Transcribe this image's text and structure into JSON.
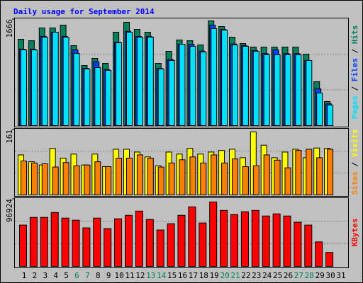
{
  "chart_data": [
    {
      "type": "bar",
      "title": "Daily usage for September 2014",
      "categories": [
        "1",
        "2",
        "3",
        "4",
        "5",
        "6",
        "7",
        "8",
        "9",
        "10",
        "11",
        "12",
        "13",
        "14",
        "15",
        "16",
        "17",
        "18",
        "19",
        "20",
        "21",
        "22",
        "23",
        "24",
        "25",
        "26",
        "27",
        "28",
        "29",
        "30",
        "31"
      ],
      "category_colors": [
        "#000000",
        "#000000",
        "#000000",
        "#000000",
        "#000000",
        "#00805c",
        "#00805c",
        "#000000",
        "#000000",
        "#000000",
        "#000000",
        "#000000",
        "#00805c",
        "#00805c",
        "#000000",
        "#000000",
        "#000000",
        "#000000",
        "#000000",
        "#00805c",
        "#00805c",
        "#000000",
        "#000000",
        "#000000",
        "#000000",
        "#000000",
        "#00805c",
        "#00805c",
        "#000000",
        "#000000",
        "#000000"
      ],
      "ylim": [
        0,
        1666
      ],
      "yticks": [
        1666
      ],
      "series": [
        {
          "name": "Hits",
          "color": "#00805c",
          "values": [
            1355,
            1333,
            1533,
            1533,
            1577,
            1255,
            944,
            1055,
            977,
            1466,
            1622,
            1510,
            1466,
            977,
            1166,
            1344,
            1333,
            1266,
            1644,
            1555,
            1388,
            1288,
            1233,
            1233,
            1233,
            1233,
            1233,
            1122,
            689,
            378,
            null
          ]
        },
        {
          "name": "Files",
          "color": "#0040ff",
          "values": [
            1200,
            1200,
            1400,
            1466,
            1400,
            1188,
            900,
            1000,
            880,
            1310,
            1480,
            1400,
            1400,
            900,
            1040,
            1277,
            1277,
            1170,
            1577,
            1510,
            1280,
            1255,
            1180,
            1130,
            1188,
            1130,
            1130,
            1022,
            577,
            340,
            null
          ]
        },
        {
          "name": "Pages",
          "color": "#00e0ff",
          "values": [
            1188,
            1188,
            1388,
            1466,
            1388,
            1133,
            888,
            911,
            866,
            1300,
            1466,
            1388,
            1388,
            888,
            1022,
            1277,
            1244,
            1155,
            1522,
            1500,
            1266,
            1244,
            1166,
            1111,
            1111,
            1111,
            1111,
            1022,
            511,
            322,
            null
          ]
        }
      ]
    },
    {
      "type": "bar",
      "ylim": [
        0,
        161
      ],
      "yticks": [
        161
      ],
      "series": [
        {
          "name": "Visits",
          "color": "#ffff00",
          "values": [
            99,
            82,
            74,
            115,
            91,
            101,
            74,
            101,
            70,
            113,
            113,
            106,
            94,
            72,
            106,
            101,
            115,
            101,
            106,
            110,
            113,
            92,
            156,
            123,
            92,
            106,
            113,
            92,
            116,
            115,
            null
          ]
        },
        {
          "name": "Sites",
          "color": "#ff8000",
          "values": [
            84,
            79,
            77,
            69,
            80,
            72,
            74,
            82,
            70,
            91,
            91,
            99,
            91,
            69,
            79,
            87,
            94,
            79,
            99,
            79,
            89,
            70,
            72,
            99,
            86,
            67,
            110,
            113,
            92,
            113,
            null
          ]
        }
      ]
    },
    {
      "type": "bar",
      "ylim": [
        0,
        96924
      ],
      "yticks": [
        96924
      ],
      "series": [
        {
          "name": "KBytes",
          "color": "#ff0000",
          "values": [
            59568,
            70674,
            70674,
            77742,
            69664,
            66635,
            55529,
            69664,
            54520,
            68654,
            73702,
            79760,
            67645,
            52501,
            61587,
            73702,
            85818,
            62597,
            92885,
            80769,
            74712,
            78751,
            80769,
            72693,
            75722,
            72693,
            63606,
            59568,
            35337,
            20192,
            null
          ]
        }
      ]
    }
  ]
}
